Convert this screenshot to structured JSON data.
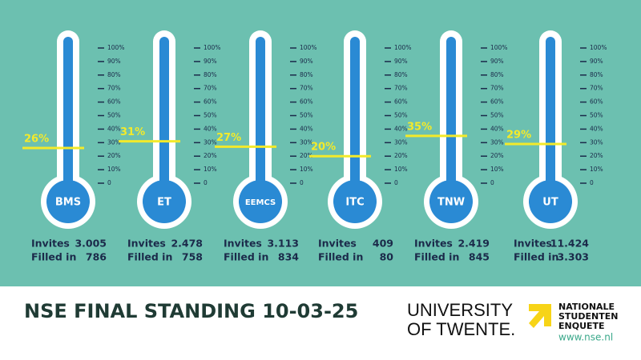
{
  "thermometers": [
    {
      "label": "BMS",
      "percent": {
        "value": 26,
        "label": "26%"
      },
      "invites": "3.005",
      "filled_in": "786"
    },
    {
      "label": "ET",
      "percent": {
        "value": 31,
        "label": "31%"
      },
      "invites": "2.478",
      "filled_in": "758"
    },
    {
      "label": "EEMCS",
      "percent": {
        "value": 27,
        "label": "27%"
      },
      "invites": "3.113",
      "filled_in": "834"
    },
    {
      "label": "ITC",
      "percent": {
        "value": 20,
        "label": "20%"
      },
      "invites": "409",
      "filled_in": "80"
    },
    {
      "label": "TNW",
      "percent": {
        "value": 35,
        "label": "35%"
      },
      "invites": "2.419",
      "filled_in": "845"
    },
    {
      "label": "UT",
      "percent": {
        "value": 29,
        "label": "29%"
      },
      "invites": "11.424",
      "filled_in": "3.303"
    }
  ],
  "scale_ticks": [
    0,
    {
      "value": 10,
      "label": "10%"
    },
    {
      "value": 20,
      "label": "20%"
    },
    {
      "value": 30,
      "label": "30%"
    },
    {
      "value": 40,
      "label": "40%"
    },
    {
      "value": 50,
      "label": "50%"
    },
    {
      "value": 60,
      "label": "60%"
    },
    {
      "value": 70,
      "label": "70%"
    },
    {
      "value": 80,
      "label": "80%"
    },
    {
      "value": 90,
      "label": "90%"
    },
    {
      "value": 100,
      "label": "100%"
    }
  ],
  "invites_label": "Invites",
  "filled_label": "Filled in",
  "footer": {
    "title": "NSE FINAL STANDING 10-03-25",
    "university": [
      "UNIVERSITY",
      "OF TWENTE."
    ],
    "nse": [
      "NATIONALE",
      "STUDENTEN",
      "ENQUETE"
    ],
    "url": "www.nse.nl"
  }
}
